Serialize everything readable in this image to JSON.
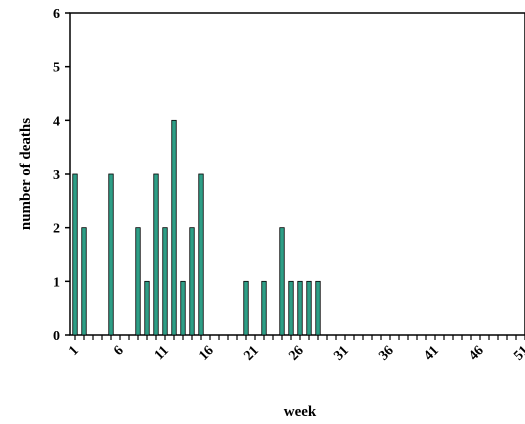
{
  "chart_data": {
    "type": "bar",
    "title": "",
    "xlabel": "week",
    "ylabel": "number of deaths",
    "x_tick_labels": [
      "1",
      "6",
      "11",
      "16",
      "21",
      "26",
      "31",
      "36",
      "41",
      "46",
      "51"
    ],
    "y_tick_labels": [
      "0",
      "1",
      "2",
      "3",
      "4",
      "5",
      "6"
    ],
    "ylim": [
      0,
      6
    ],
    "xlim": [
      1,
      52
    ],
    "grid": false,
    "legend": "none",
    "series": [
      {
        "color": "#2e9e86",
        "x": [
          1,
          2,
          3,
          4,
          5,
          6,
          7,
          8,
          9,
          10,
          11,
          12,
          13,
          14,
          15,
          16,
          17,
          18,
          19,
          20,
          21,
          22,
          23,
          24,
          25,
          26,
          27,
          28,
          29,
          30,
          31,
          32,
          33,
          34,
          35,
          36,
          37,
          38,
          39,
          40,
          41,
          42,
          43,
          44,
          45,
          46,
          47,
          48,
          49,
          50,
          51,
          52
        ],
        "values": [
          3,
          2,
          0,
          0,
          3,
          0,
          0,
          2,
          1,
          3,
          2,
          4,
          1,
          2,
          3,
          0,
          0,
          0,
          0,
          1,
          0,
          1,
          0,
          2,
          1,
          1,
          1,
          1,
          0,
          0,
          0,
          0,
          0,
          0,
          0,
          0,
          0,
          0,
          0,
          0,
          0,
          0,
          0,
          0,
          0,
          0,
          0,
          0,
          0,
          0,
          0,
          0
        ]
      }
    ]
  }
}
